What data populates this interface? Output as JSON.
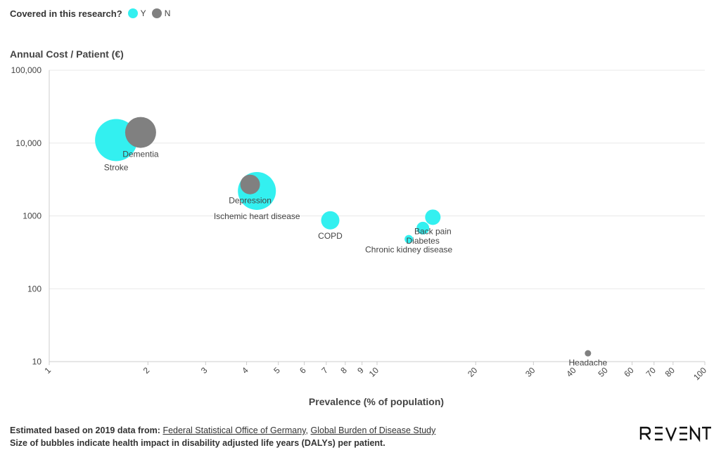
{
  "legend": {
    "title": "Covered in this research?",
    "items": [
      {
        "label": "Y",
        "color": "#33f0f0"
      },
      {
        "label": "N",
        "color": "#808080"
      }
    ]
  },
  "chart_data": {
    "type": "scatter",
    "subtype": "bubble",
    "ylabel": "Annual Cost / Patient (€)",
    "xlabel": "Prevalence (% of population)",
    "xscale": "log",
    "yscale": "log",
    "xlim": [
      1,
      100
    ],
    "ylim": [
      10,
      100000
    ],
    "grid": "horizontal",
    "legend_position": "top-left",
    "size_meaning": "health impact in disability adjusted life years (DALYs) per patient",
    "x_ticks": [
      "1",
      "2",
      "3",
      "4",
      "5",
      "6",
      "7",
      "8",
      "9",
      "10",
      "20",
      "30",
      "40",
      "50",
      "60",
      "70",
      "80",
      "100"
    ],
    "y_ticks": [
      "10",
      "100",
      "1000",
      "10,000",
      "100,000"
    ],
    "points": [
      {
        "name": "Stroke",
        "x": 1.6,
        "y": 11000,
        "size": 30,
        "covered": "Y"
      },
      {
        "name": "Dementia",
        "x": 1.9,
        "y": 14000,
        "size": 22,
        "covered": "N"
      },
      {
        "name": "Ischemic heart disease",
        "x": 4.3,
        "y": 2200,
        "size": 27,
        "covered": "Y"
      },
      {
        "name": "Depression",
        "x": 4.1,
        "y": 2700,
        "size": 14,
        "covered": "N"
      },
      {
        "name": "COPD",
        "x": 7.2,
        "y": 870,
        "size": 13,
        "covered": "Y"
      },
      {
        "name": "Back pain",
        "x": 14.8,
        "y": 960,
        "size": 11,
        "covered": "Y"
      },
      {
        "name": "Diabetes",
        "x": 13.8,
        "y": 680,
        "size": 9,
        "covered": "Y"
      },
      {
        "name": "Chronic kidney disease",
        "x": 12.5,
        "y": 480,
        "size": 6,
        "covered": "Y"
      },
      {
        "name": "Headache",
        "x": 44,
        "y": 13,
        "size": 4.5,
        "covered": "N"
      }
    ]
  },
  "footer": {
    "line1_prefix": "Estimated based on 2019 data from:",
    "link1": "Federal Statistical Office of Germany",
    "separator": ",",
    "link2": "Global Burden of Disease Study",
    "line2": "Size of bubbles indicate health impact in disability adjusted life years (DALYs) per patient."
  },
  "brand": {
    "name": "REVENT",
    "icon": "revent-logo"
  }
}
